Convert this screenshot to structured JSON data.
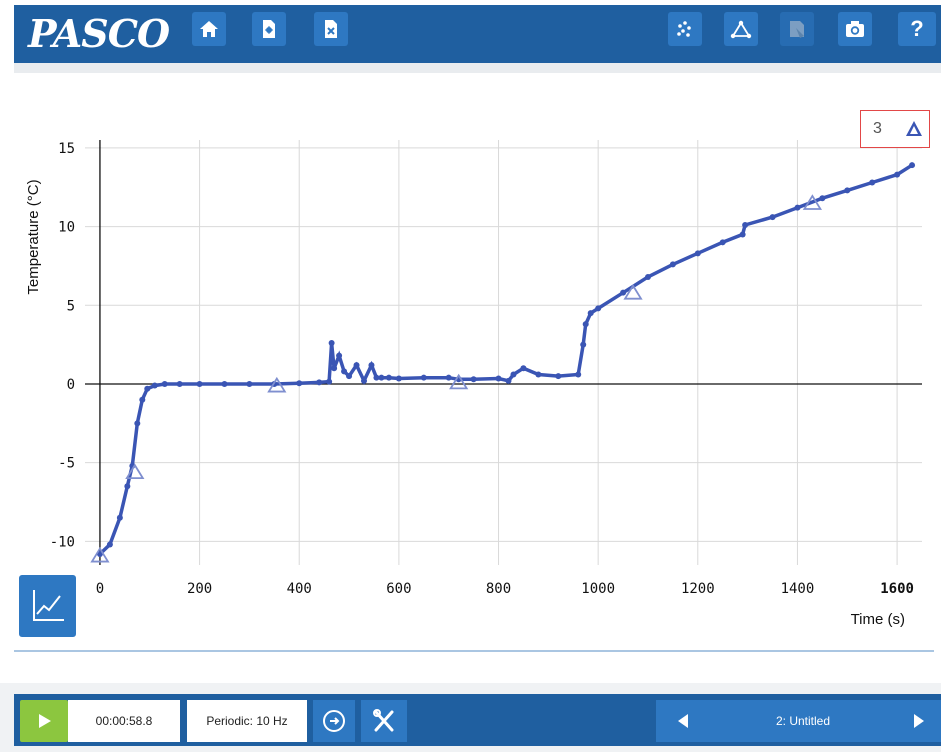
{
  "header": {
    "logo_text": "PASCO",
    "buttons": [
      {
        "name": "home",
        "icon": "home-icon"
      },
      {
        "name": "new-file",
        "icon": "new-file-icon"
      },
      {
        "name": "close-file",
        "icon": "close-file-icon"
      },
      {
        "name": "data-points",
        "icon": "scatter-icon"
      },
      {
        "name": "connect",
        "icon": "connect-points-icon"
      },
      {
        "name": "annotate",
        "icon": "annotate-icon"
      },
      {
        "name": "snapshot",
        "icon": "camera-icon"
      },
      {
        "name": "help",
        "icon": "help-icon",
        "label": "?"
      }
    ]
  },
  "legend": {
    "count": "3",
    "icon": "triangle-marker-icon"
  },
  "chart_data": {
    "type": "line",
    "xlabel": "Time (s)",
    "ylabel": "Temperature (°C)",
    "xlim": [
      -30,
      1650
    ],
    "ylim": [
      -11.5,
      15.5
    ],
    "xticks": [
      0,
      200,
      400,
      600,
      800,
      1000,
      1200,
      1400,
      1600
    ],
    "yticks": [
      -10,
      -5,
      0,
      5,
      10,
      15
    ],
    "grid": true,
    "color": "#3a55b4",
    "marker": "circle",
    "x": [
      0,
      20,
      40,
      55,
      65,
      75,
      85,
      95,
      110,
      130,
      160,
      200,
      250,
      300,
      350,
      400,
      440,
      460,
      465,
      470,
      480,
      490,
      500,
      515,
      530,
      545,
      555,
      565,
      580,
      600,
      650,
      700,
      720,
      750,
      800,
      820,
      830,
      850,
      880,
      920,
      960,
      970,
      975,
      985,
      1000,
      1050,
      1100,
      1150,
      1200,
      1250,
      1290,
      1295,
      1350,
      1400,
      1450,
      1500,
      1550,
      1600,
      1630
    ],
    "y": [
      -10.8,
      -10.2,
      -8.5,
      -6.5,
      -5.2,
      -2.5,
      -1.0,
      -0.3,
      -0.1,
      0.0,
      0.0,
      0.0,
      0.0,
      0.0,
      0.0,
      0.05,
      0.1,
      0.15,
      2.6,
      1.0,
      1.8,
      0.8,
      0.5,
      1.2,
      0.2,
      1.2,
      0.4,
      0.4,
      0.4,
      0.35,
      0.4,
      0.4,
      0.3,
      0.3,
      0.35,
      0.2,
      0.6,
      1.0,
      0.6,
      0.5,
      0.6,
      2.5,
      3.8,
      4.5,
      4.8,
      5.8,
      6.8,
      7.6,
      8.3,
      9.0,
      9.5,
      10.1,
      10.6,
      11.2,
      11.8,
      12.3,
      12.8,
      13.3,
      13.9
    ],
    "triangle_markers": [
      [
        0,
        -10.9
      ],
      [
        70,
        -5.6
      ],
      [
        355,
        -0.1
      ],
      [
        720,
        0.1
      ],
      [
        1070,
        5.8
      ],
      [
        1430,
        11.5
      ]
    ]
  },
  "graph_tool": {
    "icon": "graph-display-icon"
  },
  "controls": {
    "play_icon": "play-icon",
    "elapsed": "00:00:58.8",
    "sample_mode": "Periodic: 10 Hz",
    "sampling_icon": "sampling-options-icon",
    "tools_icon": "hardware-setup-icon",
    "page_name": "2: Untitled",
    "prev_icon": "prev-page-icon",
    "next_icon": "next-page-icon"
  }
}
